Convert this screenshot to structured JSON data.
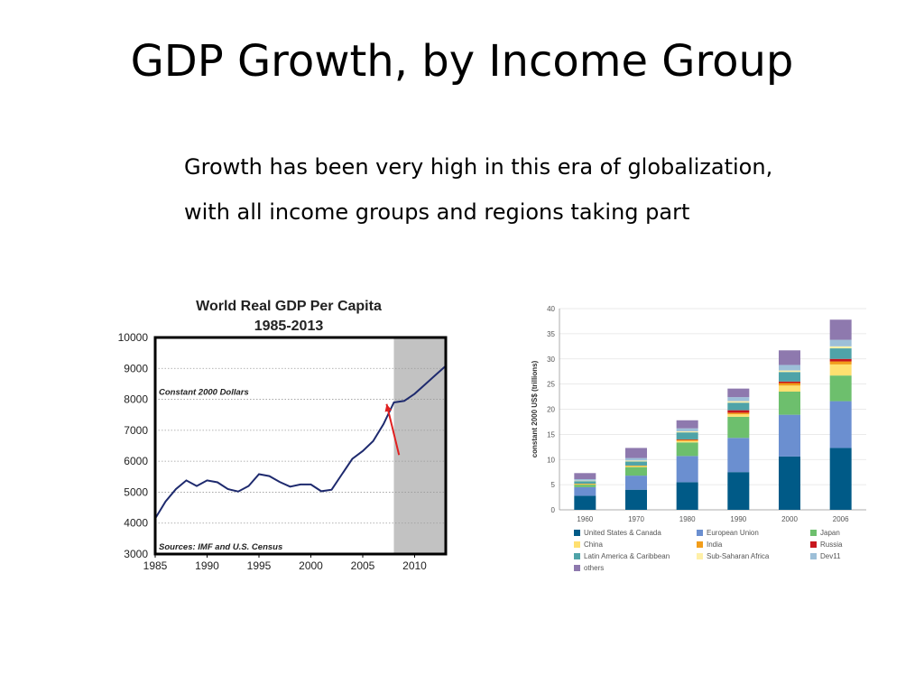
{
  "slide": {
    "title": "GDP Growth, by Income Group",
    "subtitle_lines": [
      "Growth has been very high in this era of globalization,",
      "with all income groups and regions taking part"
    ]
  },
  "chart_data": [
    {
      "type": "line",
      "title": "World Real GDP Per Capita",
      "subtitle": "1985-2013",
      "annotations": [
        "Constant 2000 Dollars",
        "Sources: IMF and U.S. Census"
      ],
      "xlabel": "",
      "ylabel": "",
      "xlim": [
        1985,
        2013
      ],
      "ylim": [
        3000,
        10000
      ],
      "x_ticks": [
        1985,
        1990,
        1995,
        2000,
        2005,
        2010
      ],
      "y_ticks": [
        3000,
        4000,
        5000,
        6000,
        7000,
        8000,
        9000,
        10000
      ],
      "shaded_region": [
        2008,
        2013
      ],
      "arrow_from": [
        2008.5,
        6200
      ],
      "arrow_to": [
        2007.3,
        7850
      ],
      "grid": true,
      "line_color": "#1e2a6e",
      "series": [
        {
          "x": [
            1985,
            1986,
            1987,
            1988,
            1989,
            1990,
            1991,
            1992,
            1993,
            1994,
            1995,
            1996,
            1997,
            1998,
            1999,
            2000,
            2001,
            2002,
            2003,
            2004,
            2005,
            2006,
            2007,
            2008,
            2009,
            2010,
            2011,
            2012,
            2013
          ],
          "values": [
            4150,
            4700,
            5100,
            5380,
            5200,
            5380,
            5320,
            5100,
            5020,
            5200,
            5580,
            5520,
            5330,
            5180,
            5250,
            5250,
            5030,
            5080,
            5580,
            6080,
            6330,
            6650,
            7200,
            7900,
            7950,
            8180,
            8480,
            8780,
            9080
          ]
        }
      ]
    },
    {
      "type": "bar",
      "stacked": true,
      "title": "",
      "xlabel": "",
      "ylabel": "constant 2000 US$ (trillions)",
      "ylim": [
        0,
        40
      ],
      "y_ticks": [
        0,
        5,
        10,
        15,
        20,
        25,
        30,
        35,
        40
      ],
      "categories": [
        "1960",
        "1970",
        "1980",
        "1990",
        "2000",
        "2006"
      ],
      "grid": true,
      "legend_position": "bottom",
      "series": [
        {
          "name": "United States & Canada",
          "color": "#005a87",
          "values": [
            2.8,
            4.0,
            5.5,
            7.5,
            10.6,
            12.3
          ]
        },
        {
          "name": "European Union",
          "color": "#6b8fd0",
          "values": [
            1.7,
            2.8,
            5.2,
            6.8,
            8.3,
            9.3
          ]
        },
        {
          "name": "Japan",
          "color": "#6dbf6d",
          "values": [
            0.5,
            1.7,
            2.7,
            4.2,
            4.6,
            5.1
          ]
        },
        {
          "name": "China",
          "color": "#ffe070",
          "values": [
            0.1,
            0.2,
            0.3,
            0.5,
            1.2,
            2.2
          ]
        },
        {
          "name": "India",
          "color": "#f29d1a",
          "values": [
            0.1,
            0.1,
            0.2,
            0.3,
            0.5,
            0.6
          ]
        },
        {
          "name": "Russia",
          "color": "#c8161d",
          "values": [
            0.0,
            0.0,
            0.1,
            0.5,
            0.3,
            0.5
          ]
        },
        {
          "name": "Latin America & Caribbean",
          "color": "#4fa3a8",
          "values": [
            0.5,
            0.8,
            1.4,
            1.5,
            1.9,
            2.1
          ]
        },
        {
          "name": "Sub-Saharan Africa",
          "color": "#fff0a8",
          "values": [
            0.1,
            0.2,
            0.2,
            0.3,
            0.3,
            0.4
          ]
        },
        {
          "name": "Dev11",
          "color": "#9dbfd8",
          "values": [
            0.3,
            0.5,
            0.6,
            0.8,
            1.1,
            1.3
          ]
        },
        {
          "name": "others",
          "color": "#8e79ae",
          "values": [
            1.2,
            2.0,
            1.6,
            1.7,
            2.9,
            4.0
          ]
        }
      ]
    }
  ]
}
